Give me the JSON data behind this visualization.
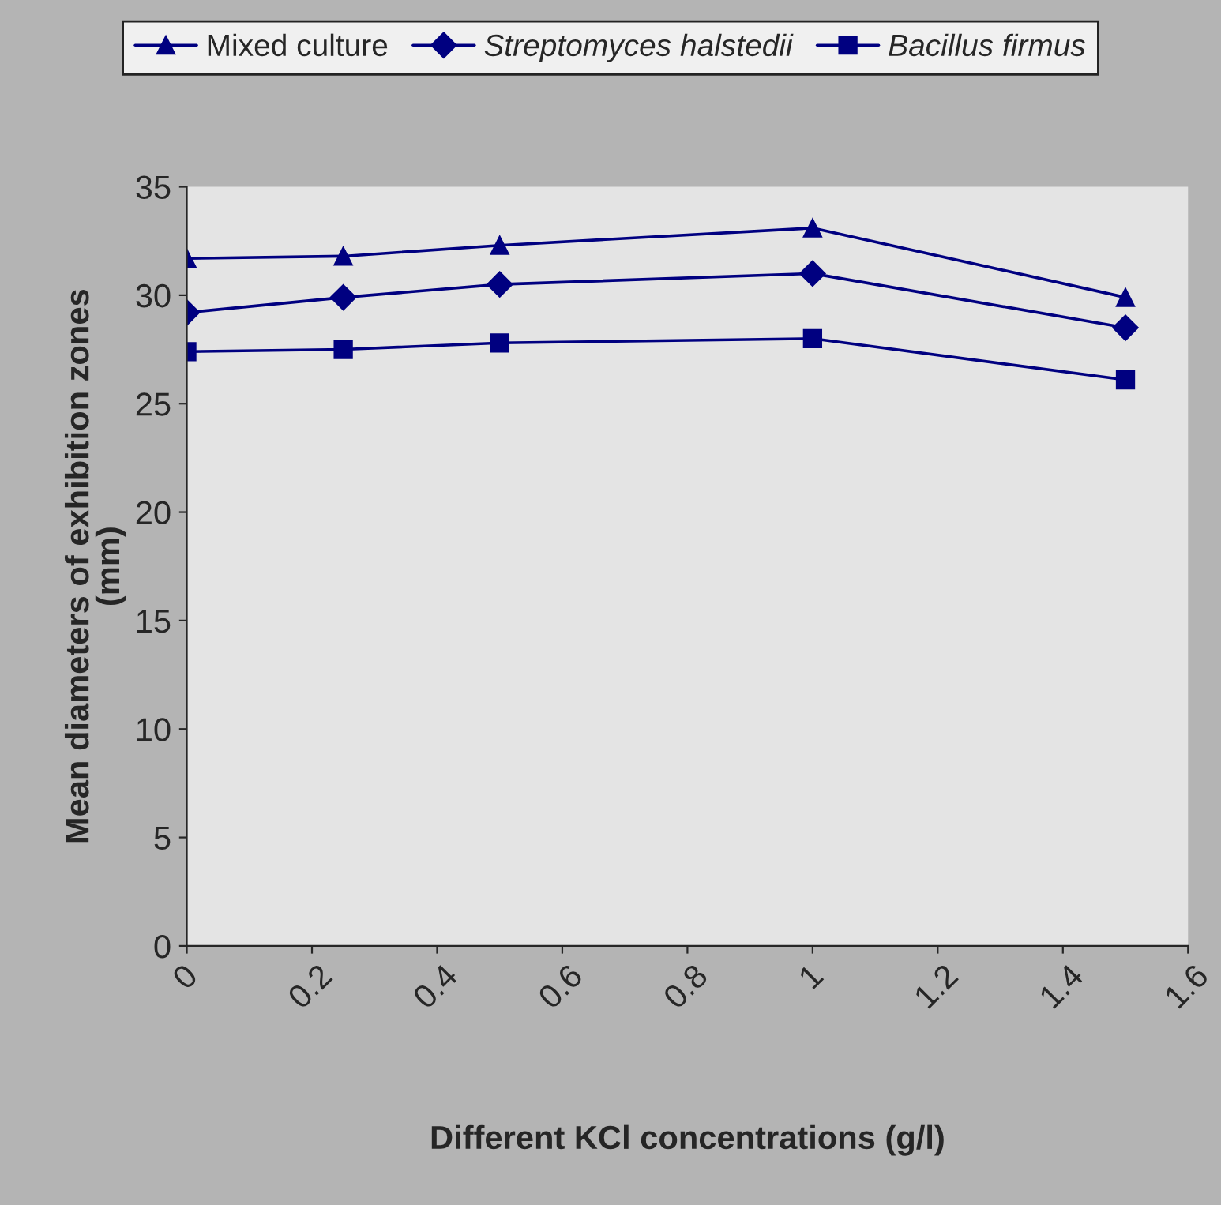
{
  "chart_data": {
    "type": "line",
    "xlabel": "Different KCl concentrations (g/l)",
    "ylabel": "Mean diameters of exhibition zones\n(mm)",
    "x": [
      0,
      0.25,
      0.5,
      1,
      1.5
    ],
    "series": [
      {
        "name": "Mixed culture",
        "color": "#000080",
        "marker": "triangle",
        "values": [
          31.7,
          31.8,
          32.3,
          33.1,
          29.9
        ]
      },
      {
        "name": "Streptomyces halstedii",
        "color": "#000080",
        "marker": "diamond",
        "values": [
          29.2,
          29.9,
          30.5,
          31.0,
          28.5
        ]
      },
      {
        "name": "Bacillus firmus",
        "color": "#000080",
        "marker": "square",
        "values": [
          27.4,
          27.5,
          27.8,
          28.0,
          26.1
        ]
      }
    ],
    "xlim": [
      0,
      1.6
    ],
    "xticks": [
      0,
      0.2,
      0.4,
      0.6,
      0.8,
      1,
      1.2,
      1.4,
      1.6
    ],
    "ylim": [
      0,
      35
    ],
    "yticks": [
      0,
      5,
      10,
      15,
      20,
      25,
      30,
      35
    ],
    "grid": false,
    "legend": "top",
    "line_style": "solid"
  }
}
